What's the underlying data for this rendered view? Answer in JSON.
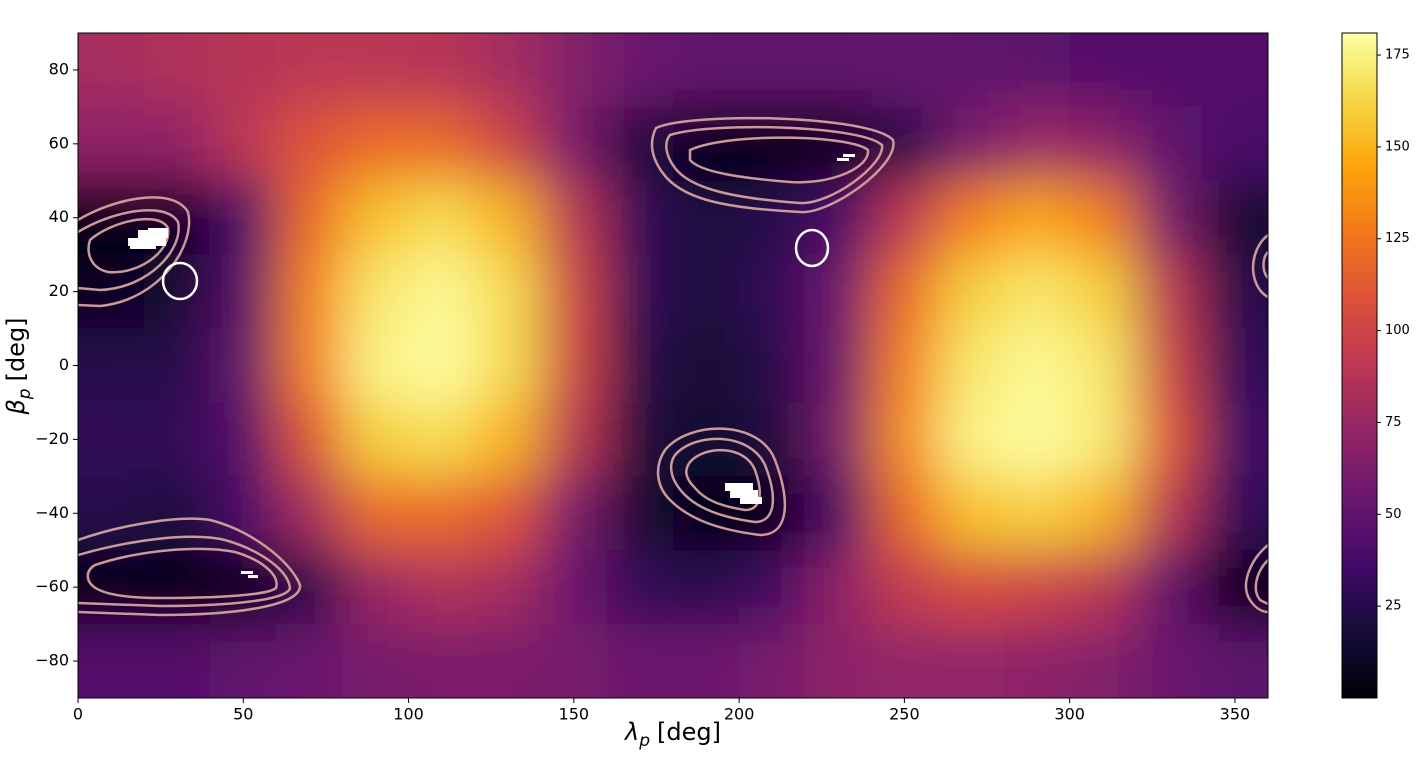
{
  "chart_data": {
    "type": "heatmap",
    "colormap": "inferno",
    "x_label": {
      "symbol": "λ",
      "subscript": "p",
      "unit": "[deg]"
    },
    "y_label": {
      "symbol": "β",
      "subscript": "p",
      "unit": "[deg]"
    },
    "xlim": [
      0,
      360
    ],
    "ylim": [
      -90,
      90
    ],
    "xticks": [
      0,
      50,
      100,
      150,
      200,
      250,
      300,
      350
    ],
    "yticks": [
      {
        "value": -80,
        "label": "−80"
      },
      {
        "value": -60,
        "label": "−60"
      },
      {
        "value": -40,
        "label": "−40"
      },
      {
        "value": -20,
        "label": "−20"
      },
      0,
      20,
      40,
      60,
      80
    ],
    "x": [
      10,
      30,
      50,
      70,
      90,
      110,
      130,
      150,
      170,
      190,
      210,
      230,
      250,
      270,
      290,
      310,
      330,
      350
    ],
    "y": [
      80,
      60,
      40,
      20,
      0,
      -20,
      -40,
      -60,
      -80
    ],
    "z": [
      [
        80,
        85,
        88,
        90,
        90,
        88,
        80,
        65,
        55,
        50,
        50,
        50,
        52,
        50,
        48,
        45,
        45,
        45
      ],
      [
        70,
        70,
        90,
        110,
        120,
        120,
        100,
        60,
        20,
        5,
        2,
        5,
        25,
        60,
        75,
        70,
        50,
        40
      ],
      [
        5,
        10,
        40,
        120,
        155,
        165,
        150,
        90,
        30,
        20,
        25,
        40,
        90,
        130,
        145,
        130,
        60,
        15
      ],
      [
        10,
        15,
        45,
        130,
        170,
        178,
        165,
        100,
        30,
        20,
        30,
        55,
        120,
        160,
        170,
        160,
        90,
        25
      ],
      [
        25,
        25,
        50,
        130,
        175,
        180,
        165,
        100,
        25,
        15,
        25,
        55,
        130,
        170,
        178,
        170,
        100,
        30
      ],
      [
        30,
        30,
        45,
        110,
        160,
        165,
        150,
        90,
        20,
        15,
        20,
        60,
        135,
        175,
        180,
        172,
        110,
        35
      ],
      [
        25,
        20,
        40,
        80,
        120,
        120,
        110,
        60,
        15,
        3,
        3,
        40,
        120,
        155,
        160,
        150,
        90,
        30
      ],
      [
        3,
        2,
        5,
        25,
        75,
        85,
        80,
        55,
        30,
        25,
        35,
        70,
        95,
        105,
        100,
        90,
        50,
        5
      ],
      [
        45,
        45,
        50,
        55,
        60,
        62,
        62,
        60,
        55,
        55,
        60,
        70,
        72,
        72,
        70,
        65,
        55,
        48
      ]
    ],
    "colorbar": {
      "lim": [
        0,
        181
      ],
      "ticks": [
        25,
        50,
        75,
        100,
        125,
        150,
        175
      ]
    }
  }
}
